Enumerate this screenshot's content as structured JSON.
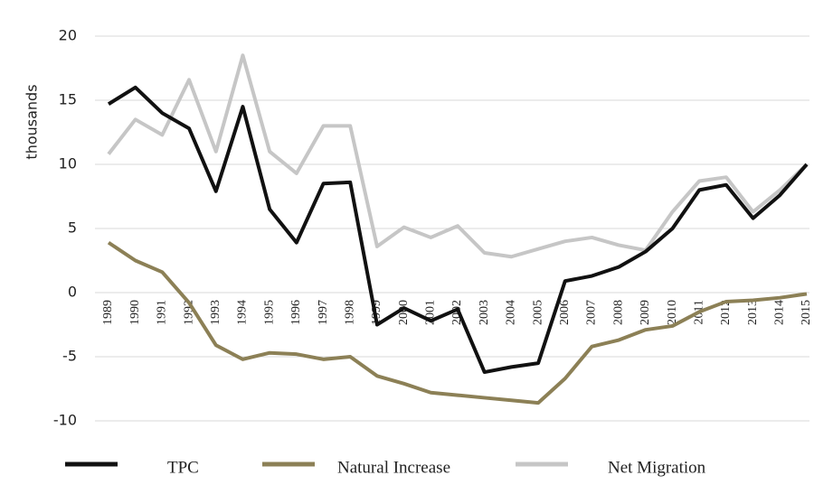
{
  "chart_data": {
    "type": "line",
    "y_label": "thousands",
    "categories": [
      "1989",
      "1990",
      "1991",
      "1992",
      "1993",
      "1994",
      "1995",
      "1996",
      "1997",
      "1998",
      "1999",
      "2000",
      "2001",
      "2002",
      "2003",
      "2004",
      "2005",
      "2006",
      "2007",
      "2008",
      "2009",
      "2010",
      "2011",
      "2012",
      "2013",
      "2014",
      "2015"
    ],
    "series": [
      {
        "name": "TPC",
        "color": "#111111",
        "values": [
          14.7,
          16.0,
          14.0,
          12.8,
          7.9,
          14.5,
          6.5,
          3.9,
          8.5,
          8.6,
          -2.5,
          -1.2,
          -2.2,
          -1.3,
          -6.2,
          -5.8,
          -5.5,
          0.9,
          1.3,
          2.0,
          3.2,
          5.0,
          8.0,
          8.4,
          5.8,
          7.6,
          10.0
        ]
      },
      {
        "name": "Natural Increase",
        "color": "#8c8056",
        "values": [
          3.9,
          2.5,
          1.6,
          -0.8,
          -4.1,
          -5.2,
          -4.7,
          -4.8,
          -5.2,
          -5.0,
          -6.5,
          -7.1,
          -7.8,
          -8.0,
          -8.2,
          -8.4,
          -8.6,
          -6.7,
          -4.2,
          -3.7,
          -2.9,
          -2.6,
          -1.5,
          -0.7,
          -0.6,
          -0.4,
          -0.1
        ]
      },
      {
        "name": "Net Migration",
        "color": "#c6c6c6",
        "values": [
          10.8,
          13.5,
          12.3,
          16.6,
          11.0,
          18.5,
          11.0,
          9.3,
          13.0,
          13.0,
          3.6,
          5.1,
          4.3,
          5.2,
          3.1,
          2.8,
          3.4,
          4.0,
          4.3,
          3.7,
          3.3,
          6.3,
          8.7,
          9.0,
          6.3,
          8.0,
          10.0
        ]
      }
    ],
    "ylim": [
      -10,
      20
    ],
    "yticks": [
      -10,
      -5,
      0,
      5,
      10,
      15,
      20
    ],
    "grid": true,
    "legend": "bottom"
  }
}
